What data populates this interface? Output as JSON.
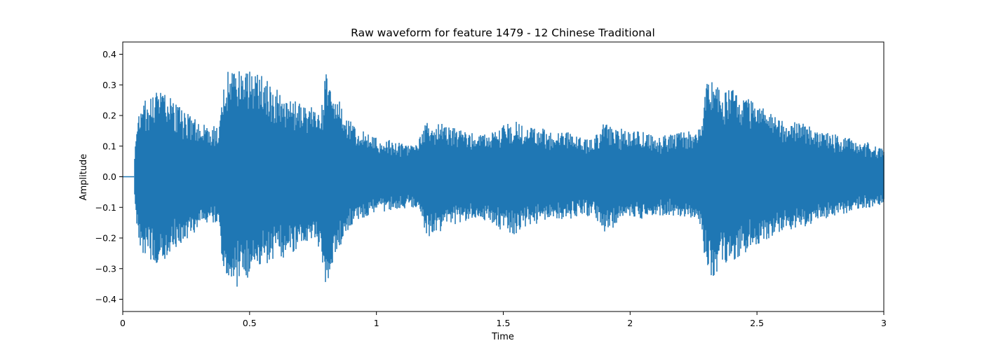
{
  "chart_data": {
    "type": "line",
    "title": "Raw waveform for feature 1479 - 12 Chinese Traditional",
    "xlabel": "Time",
    "ylabel": "Amplitude",
    "xlim": [
      0,
      3
    ],
    "ylim": [
      -0.44,
      0.44
    ],
    "xticks": [
      0,
      0.5,
      1,
      1.5,
      2,
      2.5,
      3
    ],
    "xtick_labels": [
      "0",
      "0.5",
      "1",
      "1.5",
      "2",
      "2.5",
      "3"
    ],
    "yticks": [
      -0.4,
      -0.3,
      -0.2,
      -0.1,
      0.0,
      0.1,
      0.2,
      0.3,
      0.4
    ],
    "ytick_labels": [
      "−0.4",
      "−0.3",
      "−0.2",
      "−0.1",
      "0.0",
      "0.1",
      "0.2",
      "0.3",
      "0.4"
    ],
    "grid": false,
    "color": "#1f77b4",
    "series": [
      {
        "envelope_max": {
          "t": [
            0.0,
            0.045,
            0.05,
            0.07,
            0.1,
            0.15,
            0.2,
            0.25,
            0.3,
            0.35,
            0.38,
            0.39,
            0.4,
            0.42,
            0.45,
            0.5,
            0.55,
            0.6,
            0.65,
            0.7,
            0.75,
            0.78,
            0.8,
            0.82,
            0.85,
            0.88,
            0.9,
            0.95,
            1.0,
            1.05,
            1.1,
            1.15,
            1.17,
            1.2,
            1.25,
            1.3,
            1.35,
            1.4,
            1.45,
            1.5,
            1.55,
            1.6,
            1.65,
            1.7,
            1.75,
            1.8,
            1.85,
            1.9,
            1.95,
            2.0,
            2.05,
            2.1,
            2.15,
            2.2,
            2.25,
            2.28,
            2.3,
            2.32,
            2.35,
            2.4,
            2.45,
            2.5,
            2.55,
            2.6,
            2.65,
            2.7,
            2.75,
            2.8,
            2.85,
            2.9,
            2.95,
            3.0
          ],
          "v": [
            0.0,
            0.0,
            0.15,
            0.24,
            0.26,
            0.29,
            0.25,
            0.21,
            0.18,
            0.17,
            0.17,
            0.24,
            0.3,
            0.36,
            0.37,
            0.35,
            0.33,
            0.29,
            0.27,
            0.24,
            0.23,
            0.22,
            0.34,
            0.28,
            0.26,
            0.2,
            0.18,
            0.15,
            0.13,
            0.12,
            0.11,
            0.1,
            0.13,
            0.19,
            0.18,
            0.16,
            0.15,
            0.14,
            0.15,
            0.17,
            0.18,
            0.16,
            0.16,
            0.14,
            0.15,
            0.13,
            0.13,
            0.18,
            0.16,
            0.15,
            0.15,
            0.13,
            0.14,
            0.15,
            0.15,
            0.16,
            0.31,
            0.33,
            0.3,
            0.29,
            0.26,
            0.24,
            0.21,
            0.19,
            0.18,
            0.17,
            0.15,
            0.14,
            0.13,
            0.12,
            0.11,
            0.09
          ]
        },
        "envelope_min": {
          "t": [
            0.0,
            0.045,
            0.05,
            0.07,
            0.1,
            0.15,
            0.2,
            0.25,
            0.3,
            0.35,
            0.38,
            0.39,
            0.4,
            0.42,
            0.45,
            0.5,
            0.55,
            0.6,
            0.65,
            0.7,
            0.75,
            0.78,
            0.8,
            0.82,
            0.85,
            0.88,
            0.9,
            0.95,
            1.0,
            1.05,
            1.1,
            1.15,
            1.17,
            1.2,
            1.25,
            1.3,
            1.35,
            1.4,
            1.45,
            1.5,
            1.55,
            1.6,
            1.65,
            1.7,
            1.75,
            1.8,
            1.85,
            1.9,
            1.95,
            2.0,
            2.05,
            2.1,
            2.15,
            2.2,
            2.25,
            2.28,
            2.3,
            2.32,
            2.35,
            2.4,
            2.45,
            2.5,
            2.55,
            2.6,
            2.65,
            2.7,
            2.75,
            2.8,
            2.85,
            2.9,
            2.95,
            3.0
          ],
          "v": [
            0.0,
            0.0,
            -0.15,
            -0.24,
            -0.27,
            -0.29,
            -0.24,
            -0.21,
            -0.17,
            -0.16,
            -0.16,
            -0.26,
            -0.33,
            -0.35,
            -0.36,
            -0.33,
            -0.3,
            -0.28,
            -0.26,
            -0.23,
            -0.22,
            -0.24,
            -0.38,
            -0.3,
            -0.24,
            -0.19,
            -0.16,
            -0.14,
            -0.12,
            -0.11,
            -0.11,
            -0.1,
            -0.11,
            -0.2,
            -0.18,
            -0.16,
            -0.15,
            -0.14,
            -0.15,
            -0.18,
            -0.19,
            -0.16,
            -0.15,
            -0.14,
            -0.14,
            -0.13,
            -0.13,
            -0.18,
            -0.16,
            -0.14,
            -0.14,
            -0.13,
            -0.13,
            -0.13,
            -0.14,
            -0.16,
            -0.31,
            -0.34,
            -0.3,
            -0.28,
            -0.25,
            -0.23,
            -0.2,
            -0.18,
            -0.17,
            -0.16,
            -0.14,
            -0.13,
            -0.12,
            -0.11,
            -0.1,
            -0.09
          ]
        }
      }
    ]
  }
}
